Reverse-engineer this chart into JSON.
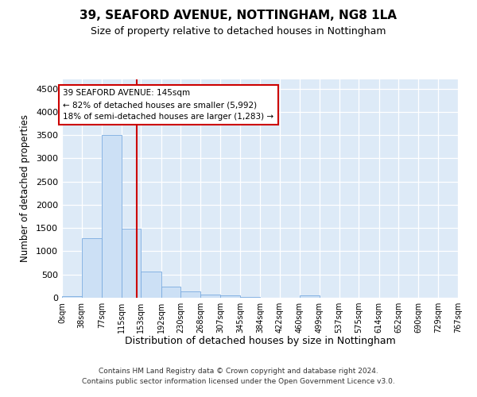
{
  "title": "39, SEAFORD AVENUE, NOTTINGHAM, NG8 1LA",
  "subtitle": "Size of property relative to detached houses in Nottingham",
  "xlabel": "Distribution of detached houses by size in Nottingham",
  "ylabel": "Number of detached properties",
  "bar_color": "#cce0f5",
  "bar_edge_color": "#7aabe0",
  "bg_color": "#ddeaf7",
  "grid_color": "#ffffff",
  "vline_x": 145,
  "vline_color": "#cc0000",
  "annotation_text": "39 SEAFORD AVENUE: 145sqm\n← 82% of detached houses are smaller (5,992)\n18% of semi-detached houses are larger (1,283) →",
  "annotation_box_color": "#cc0000",
  "bin_edges": [
    0,
    38,
    77,
    115,
    153,
    192,
    230,
    268,
    307,
    345,
    384,
    422,
    460,
    499,
    537,
    575,
    614,
    652,
    690,
    729,
    767
  ],
  "bar_heights": [
    30,
    1280,
    3500,
    1480,
    570,
    240,
    130,
    75,
    50,
    20,
    5,
    5,
    50,
    0,
    0,
    0,
    0,
    0,
    0,
    0
  ],
  "ylim": [
    0,
    4700
  ],
  "yticks": [
    0,
    500,
    1000,
    1500,
    2000,
    2500,
    3000,
    3500,
    4000,
    4500
  ],
  "footer_line1": "Contains HM Land Registry data © Crown copyright and database right 2024.",
  "footer_line2": "Contains public sector information licensed under the Open Government Licence v3.0."
}
